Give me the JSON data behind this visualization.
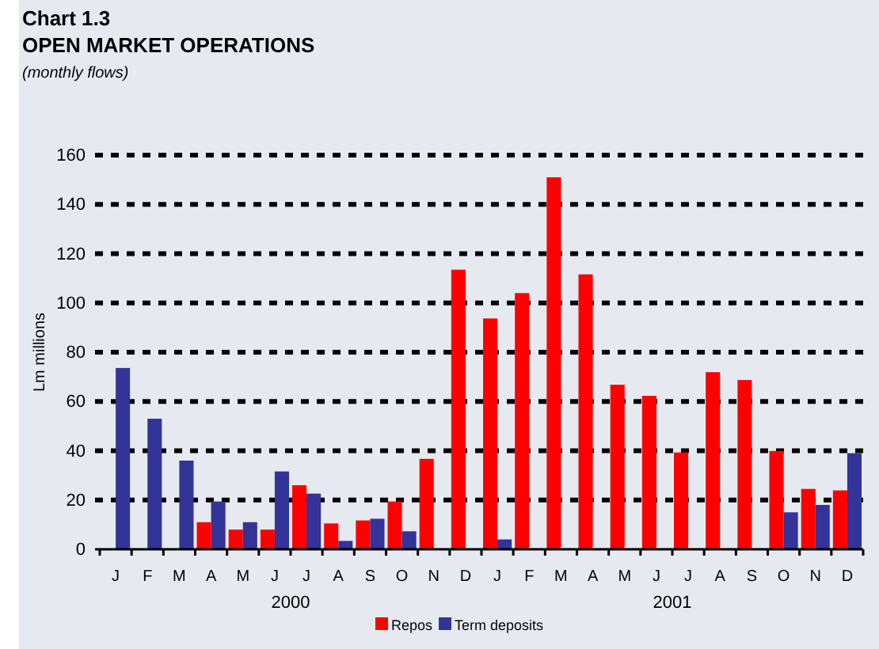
{
  "chart_data": {
    "type": "bar",
    "title": "Chart 1.3",
    "subtitle": "OPEN MARKET OPERATIONS",
    "annotations": [
      "(monthly flows)",
      "2000",
      "2001"
    ],
    "ylabel": "Lm millions",
    "categories": [
      "J",
      "F",
      "M",
      "A",
      "M",
      "J",
      "J",
      "A",
      "S",
      "O",
      "N",
      "D",
      "J",
      "F",
      "M",
      "A",
      "M",
      "J",
      "J",
      "A",
      "S",
      "O",
      "N",
      "D"
    ],
    "series": [
      {
        "name": "Repos",
        "color": "#ff0000",
        "values": [
          null,
          null,
          null,
          11,
          8,
          8,
          26,
          10.5,
          11.7,
          19.4,
          36.7,
          113.5,
          93.7,
          104,
          151,
          111.6,
          66.8,
          62.3,
          39.3,
          71.9,
          68.7,
          39.9,
          24.5,
          23.9
        ]
      },
      {
        "name": "Term deposits",
        "color": "#333399",
        "values": [
          73.6,
          53,
          36,
          19.4,
          11,
          31.6,
          22.6,
          3.4,
          12.4,
          7.3,
          null,
          null,
          4,
          null,
          null,
          null,
          null,
          null,
          null,
          null,
          null,
          15,
          18,
          39
        ]
      }
    ],
    "ylim": [
      0,
      160
    ],
    "yticks": [
      0,
      20,
      40,
      60,
      80,
      100,
      120,
      140,
      160
    ],
    "grid": "y",
    "legend": "bottom"
  }
}
